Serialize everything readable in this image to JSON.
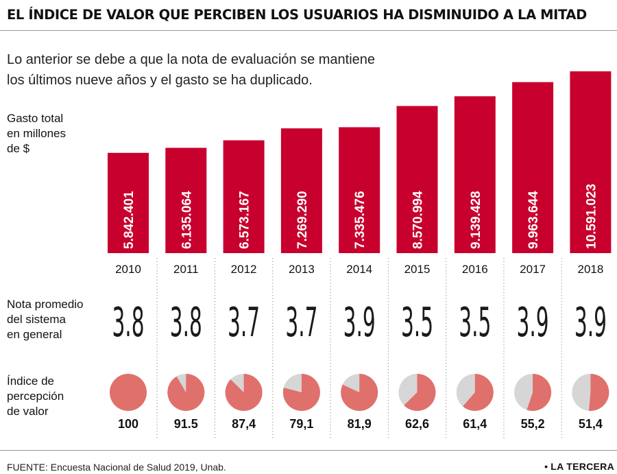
{
  "header": {
    "title": "EL ÍNDICE DE VALOR QUE PERCIBEN LOS USUARIOS HA DISMINUIDO A LA MITAD",
    "subtitle_line1": "Lo anterior se debe a que la nota de evaluación se mantiene",
    "subtitle_line2": "los últimos nueve años y el gasto se ha duplicado."
  },
  "labels": {
    "gasto": [
      "Gasto total",
      "en millones",
      "de $"
    ],
    "nota": [
      "Nota promedio",
      "del sistema",
      "en general"
    ],
    "indice": [
      "Índice de",
      "percepción",
      "de valor"
    ]
  },
  "colors": {
    "bar": "#c8002d",
    "pie_fill": "#e0706c",
    "pie_rest": "#d6d6d6"
  },
  "chart_data": {
    "type": "bar",
    "categories": [
      "2010",
      "2011",
      "2012",
      "2013",
      "2014",
      "2015",
      "2016",
      "2017",
      "2018"
    ],
    "series": [
      {
        "name": "Gasto total en millones de $",
        "values": [
          5842401,
          6135064,
          6573167,
          7269290,
          7335476,
          8570994,
          9139428,
          9963644,
          10591023
        ],
        "labels": [
          "5.842.401",
          "6.135.064",
          "6.573.167",
          "7.269.290",
          "7.335.476",
          "8.570.994",
          "9.139.428",
          "9.963.644",
          "10.591.023"
        ]
      },
      {
        "name": "Nota promedio del sistema en general",
        "values": [
          3.8,
          3.8,
          3.7,
          3.7,
          3.9,
          3.5,
          3.5,
          3.9,
          3.9
        ],
        "labels": [
          "3.8",
          "3.8",
          "3.7",
          "3.7",
          "3.9",
          "3.5",
          "3.5",
          "3.9",
          "3.9"
        ]
      },
      {
        "name": "Índice de percepción de valor",
        "values": [
          100,
          91.5,
          87.4,
          79.1,
          81.9,
          62.6,
          61.4,
          55.2,
          51.4
        ],
        "labels": [
          "100",
          "91.5",
          "87,4",
          "79,1",
          "81,9",
          "62,6",
          "61,4",
          "55,2",
          "51,4"
        ]
      }
    ]
  },
  "footer": {
    "source": "FUENTE: Encuesta Nacional de Salud 2019, Unab.",
    "brand": "LA TERCERA",
    "brand_dot": "•"
  }
}
